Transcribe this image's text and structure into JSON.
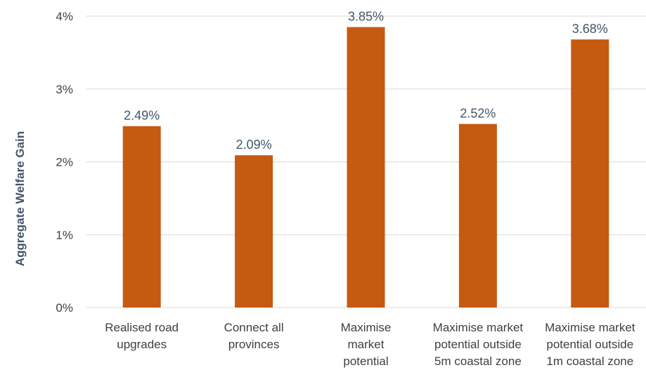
{
  "chart_data": {
    "type": "bar",
    "title": "",
    "xlabel": "",
    "ylabel": "Aggregate Welfare Gain",
    "ylim": [
      0,
      4
    ],
    "yticks": [
      "0%",
      "1%",
      "2%",
      "3%",
      "4%"
    ],
    "grid": true,
    "legend": "none",
    "bar_color": "#c55a11",
    "categories": [
      [
        "Realised road",
        "upgrades"
      ],
      [
        "Connect all",
        "provinces"
      ],
      [
        "Maximise",
        "market",
        "potential"
      ],
      [
        "Maximise market",
        "potential outside",
        "5m coastal zone"
      ],
      [
        "Maximise market",
        "potential outside",
        "1m coastal zone"
      ]
    ],
    "values": [
      2.49,
      2.09,
      3.85,
      2.52,
      3.68
    ],
    "value_labels": [
      "2.49%",
      "2.09%",
      "3.85%",
      "2.52%",
      "3.68%"
    ]
  }
}
